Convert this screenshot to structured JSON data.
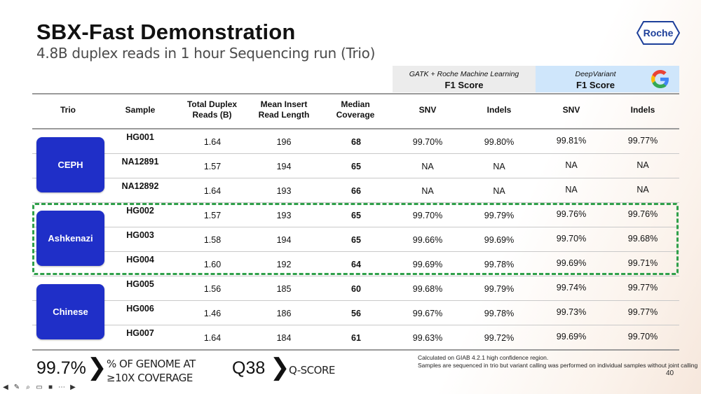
{
  "title": "SBX-Fast Demonstration",
  "subtitle": "4.8B duplex reads in 1 hour Sequencing run (Trio)",
  "logo_text": "Roche",
  "header_groups": {
    "gatk_top": "GATK + Roche Machine Learning",
    "gatk_main": "F1 Score",
    "dv_top": "DeepVariant",
    "dv_main": "F1 Score",
    "google_icon": "google-logo-icon"
  },
  "columns": {
    "trio": "Trio",
    "sample": "Sample",
    "reads_1": "Total Duplex",
    "reads_2": "Reads (B)",
    "insert_1": "Mean Insert",
    "insert_2": "Read Length",
    "cov_1": "Median",
    "cov_2": "Coverage",
    "snv1": "SNV",
    "indels1": "Indels",
    "snv2": "SNV",
    "indels2": "Indels"
  },
  "trios": [
    "CEPH",
    "Ashkenazi",
    "Chinese"
  ],
  "rows": [
    {
      "sample": "HG001",
      "reads": "1.64",
      "insert": "196",
      "cov": "68",
      "snv1": "99.70%",
      "ind1": "99.80%",
      "snv2": "99.81%",
      "ind2": "99.77%"
    },
    {
      "sample": "NA12891",
      "reads": "1.57",
      "insert": "194",
      "cov": "65",
      "snv1": "NA",
      "ind1": "NA",
      "snv2": "NA",
      "ind2": "NA"
    },
    {
      "sample": "NA12892",
      "reads": "1.64",
      "insert": "193",
      "cov": "66",
      "snv1": "NA",
      "ind1": "NA",
      "snv2": "NA",
      "ind2": "NA"
    },
    {
      "sample": "HG002",
      "reads": "1.57",
      "insert": "193",
      "cov": "65",
      "snv1": "99.70%",
      "ind1": "99.79%",
      "snv2": "99.76%",
      "ind2": "99.76%"
    },
    {
      "sample": "HG003",
      "reads": "1.58",
      "insert": "194",
      "cov": "65",
      "snv1": "99.66%",
      "ind1": "99.69%",
      "snv2": "99.70%",
      "ind2": "99.68%"
    },
    {
      "sample": "HG004",
      "reads": "1.60",
      "insert": "192",
      "cov": "64",
      "snv1": "99.69%",
      "ind1": "99.78%",
      "snv2": "99.69%",
      "ind2": "99.71%"
    },
    {
      "sample": "HG005",
      "reads": "1.56",
      "insert": "185",
      "cov": "60",
      "snv1": "99.68%",
      "ind1": "99.79%",
      "snv2": "99.74%",
      "ind2": "99.77%"
    },
    {
      "sample": "HG006",
      "reads": "1.46",
      "insert": "186",
      "cov": "56",
      "snv1": "99.67%",
      "ind1": "99.78%",
      "snv2": "99.73%",
      "ind2": "99.77%"
    },
    {
      "sample": "HG007",
      "reads": "1.64",
      "insert": "184",
      "cov": "61",
      "snv1": "99.63%",
      "ind1": "99.72%",
      "snv2": "99.69%",
      "ind2": "99.70%"
    }
  ],
  "metrics": {
    "genome_value": "99.7%",
    "genome_label_1": "% OF GENOME AT",
    "genome_label_2": "≥10X COVERAGE",
    "q_value": "Q38",
    "q_label": "Q-SCORE",
    "chevron": "❯"
  },
  "notes": {
    "line1": "Calculated on GIAB 4.2.1 high confidence region.",
    "line2": "Samples are sequenced in trio but variant calling was performed on individual samples without joint calling"
  },
  "page_number": "40",
  "colors": {
    "trio_box": "#1f2fc8",
    "highlight": "#2fa04a",
    "gatk_bg": "#ececec",
    "dv_bg": "#cfe6fb"
  },
  "controls": [
    "back-icon",
    "pen-icon",
    "zoom-icon",
    "captions-icon",
    "camera-icon",
    "more-icon",
    "forward-icon"
  ]
}
